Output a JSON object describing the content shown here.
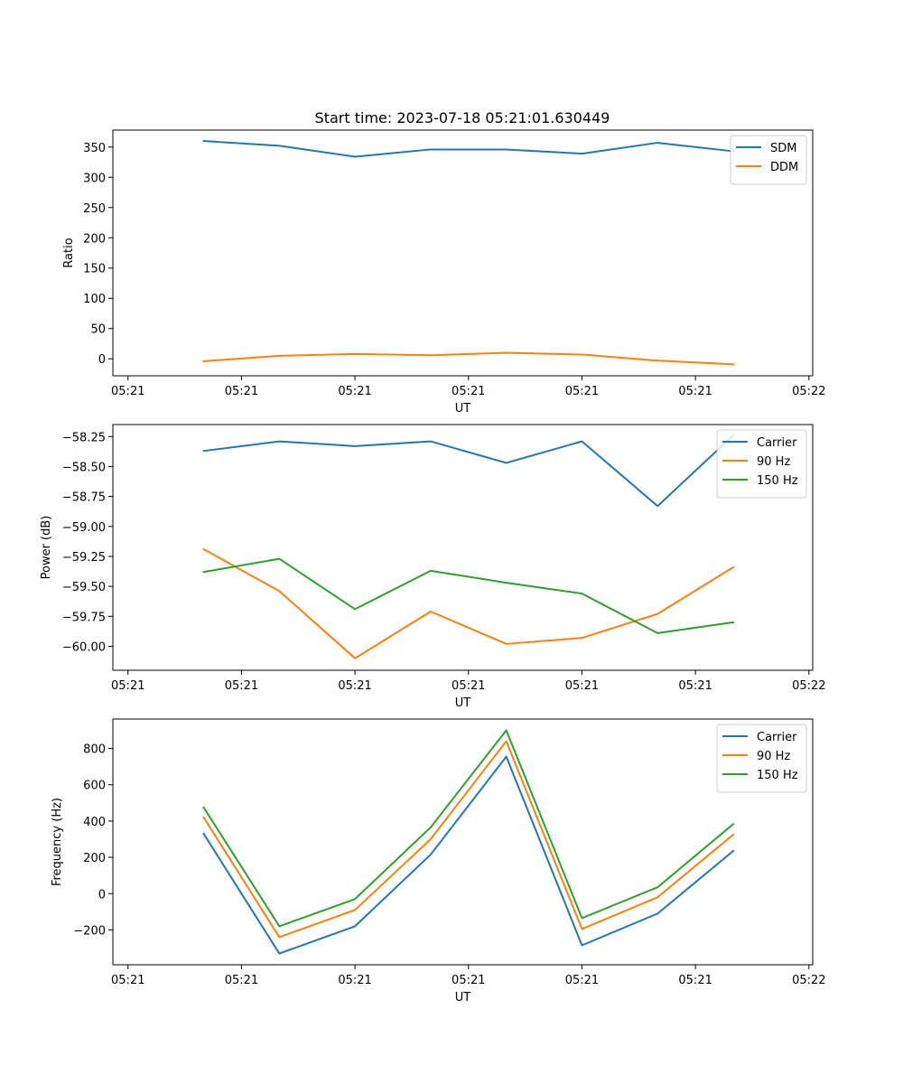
{
  "chart_data": [
    {
      "type": "line",
      "title": "Start time: 2023-07-18 05:21:01.630449",
      "xlabel": "UT",
      "ylabel": "Ratio",
      "x_tick_labels": [
        "05:21",
        "05:21",
        "05:21",
        "05:21",
        "05:21",
        "05:21",
        "05:22"
      ],
      "y_ticks": [
        0,
        50,
        100,
        150,
        200,
        250,
        300,
        350
      ],
      "y_tick_labels": [
        "0",
        "50",
        "100",
        "150",
        "200",
        "250",
        "300",
        "350"
      ],
      "ylim": [
        -28,
        378
      ],
      "x_index": [
        1,
        2,
        3,
        4,
        5,
        6,
        7,
        8
      ],
      "xlim": [
        -0.2,
        9.05
      ],
      "legend_position": "top-right",
      "series": [
        {
          "name": "SDM",
          "color": "#1f77b4",
          "values": [
            360,
            352,
            334,
            346,
            346,
            339,
            357,
            343
          ]
        },
        {
          "name": "DDM",
          "color": "#ff7f0e",
          "values": [
            -4,
            5,
            8,
            6,
            10,
            7,
            -3,
            -9
          ]
        }
      ]
    },
    {
      "type": "line",
      "title": "",
      "xlabel": "UT",
      "ylabel": "Power (dB)",
      "x_tick_labels": [
        "05:21",
        "05:21",
        "05:21",
        "05:21",
        "05:21",
        "05:21",
        "05:22"
      ],
      "y_ticks": [
        -60.0,
        -59.75,
        -59.5,
        -59.25,
        -59.0,
        -58.75,
        -58.5,
        -58.25
      ],
      "y_tick_labels": [
        "−60.00",
        "−59.75",
        "−59.50",
        "−59.25",
        "−59.00",
        "−58.75",
        "−58.50",
        "−58.25"
      ],
      "ylim": [
        -60.2,
        -58.15
      ],
      "x_index": [
        1,
        2,
        3,
        4,
        5,
        6,
        7,
        8
      ],
      "xlim": [
        -0.2,
        9.05
      ],
      "legend_position": "top-right",
      "series": [
        {
          "name": "Carrier",
          "color": "#1f77b4",
          "values": [
            -58.37,
            -58.29,
            -58.33,
            -58.29,
            -58.47,
            -58.29,
            -58.83,
            -58.24
          ]
        },
        {
          "name": "90 Hz",
          "color": "#ff7f0e",
          "values": [
            -59.19,
            -59.54,
            -60.1,
            -59.71,
            -59.98,
            -59.93,
            -59.73,
            -59.34
          ]
        },
        {
          "name": "150 Hz",
          "color": "#2ca02c",
          "values": [
            -59.38,
            -59.27,
            -59.69,
            -59.37,
            -59.47,
            -59.56,
            -59.89,
            -59.8
          ]
        }
      ]
    },
    {
      "type": "line",
      "title": "",
      "xlabel": "UT",
      "ylabel": "Frequency (Hz)",
      "x_tick_labels": [
        "05:21",
        "05:21",
        "05:21",
        "05:21",
        "05:21",
        "05:21",
        "05:22"
      ],
      "y_ticks": [
        -200,
        0,
        200,
        400,
        600,
        800
      ],
      "y_tick_labels": [
        "−200",
        "0",
        "200",
        "400",
        "600",
        "800"
      ],
      "ylim": [
        -392,
        962
      ],
      "x_index": [
        1,
        2,
        3,
        4,
        5,
        6,
        7,
        8
      ],
      "xlim": [
        -0.2,
        9.05
      ],
      "legend_position": "top-right",
      "series": [
        {
          "name": "Carrier",
          "color": "#1f77b4",
          "values": [
            330,
            -330,
            -180,
            215,
            755,
            -285,
            -110,
            235
          ]
        },
        {
          "name": "90 Hz",
          "color": "#ff7f0e",
          "values": [
            420,
            -240,
            -90,
            300,
            840,
            -195,
            -20,
            325
          ]
        },
        {
          "name": "150 Hz",
          "color": "#2ca02c",
          "values": [
            475,
            -180,
            -30,
            365,
            900,
            -135,
            35,
            383
          ]
        }
      ]
    }
  ]
}
